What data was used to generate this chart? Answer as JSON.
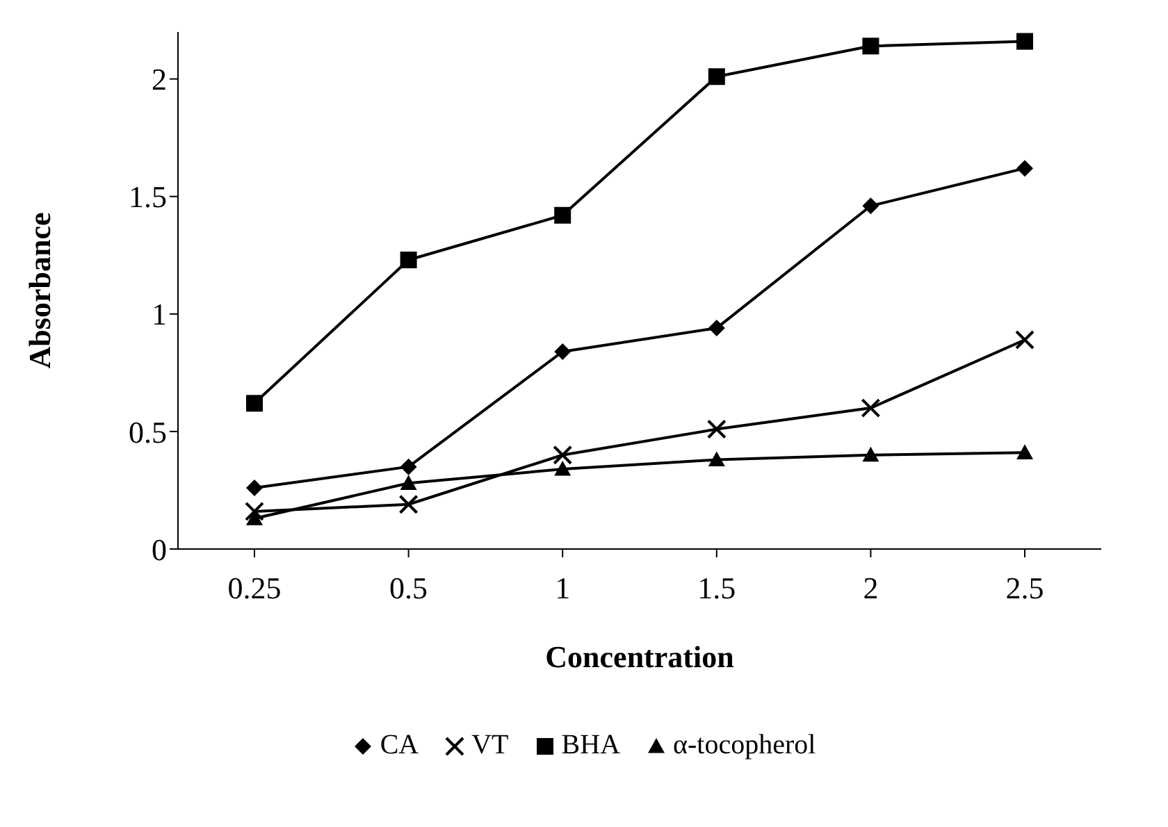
{
  "chart_data": {
    "type": "line",
    "xlabel": "Concentration",
    "ylabel": "Absorbance",
    "categories": [
      "0.25",
      "0.5",
      "1",
      "1.5",
      "2",
      "2.5"
    ],
    "series": [
      {
        "name": "CA",
        "color": "#000000",
        "marker": "diamond",
        "values": [
          0.26,
          0.35,
          0.84,
          0.94,
          1.46,
          1.62
        ]
      },
      {
        "name": "VT",
        "color": "#000000",
        "marker": "cross",
        "values": [
          0.16,
          0.19,
          0.4,
          0.51,
          0.6,
          0.89
        ]
      },
      {
        "name": "BHA",
        "color": "#000000",
        "marker": "square",
        "values": [
          0.62,
          1.23,
          1.42,
          2.01,
          2.14,
          2.16
        ]
      },
      {
        "name": "α-tocopherol",
        "color": "#000000",
        "marker": "triangle",
        "values": [
          0.13,
          0.28,
          0.34,
          0.38,
          0.4,
          0.41
        ]
      }
    ],
    "ylim": [
      0,
      2.2
    ],
    "yticks": [
      0,
      0.5,
      1,
      1.5,
      2
    ],
    "grid": false,
    "legend": "bottom"
  }
}
